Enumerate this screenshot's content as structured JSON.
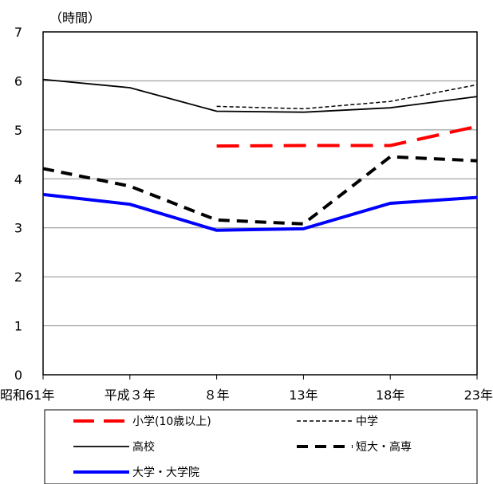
{
  "chart_data": {
    "type": "line",
    "unit_label": "（時間）",
    "categories": [
      "昭和61年",
      "平成３年",
      "８年",
      "13年",
      "18年",
      "23年"
    ],
    "ylim": [
      0,
      7
    ],
    "yticks": [
      "0",
      "1",
      "2",
      "3",
      "4",
      "5",
      "6",
      "7"
    ],
    "grid": true,
    "legend_position": "bottom",
    "series": [
      {
        "name": "小学(10歳以上)",
        "values": [
          null,
          null,
          4.67,
          4.68,
          4.68,
          5.07
        ],
        "color": "#ff0000",
        "style": "long-dash",
        "width": 4
      },
      {
        "name": "中学",
        "values": [
          null,
          null,
          5.48,
          5.43,
          5.58,
          5.92
        ],
        "color": "#000000",
        "style": "short-dash",
        "width": 1.5
      },
      {
        "name": "高校",
        "values": [
          6.03,
          5.86,
          5.38,
          5.36,
          5.45,
          5.68
        ],
        "color": "#000000",
        "style": "solid",
        "width": 1.8
      },
      {
        "name": "短大・高専",
        "values": [
          4.21,
          3.85,
          3.16,
          3.08,
          4.45,
          4.37
        ],
        "color": "#000000",
        "style": "dash",
        "width": 4
      },
      {
        "name": "大学・大学院",
        "values": [
          3.68,
          3.48,
          2.95,
          2.98,
          3.5,
          3.62
        ],
        "color": "#0000ff",
        "style": "solid",
        "width": 4
      }
    ]
  }
}
